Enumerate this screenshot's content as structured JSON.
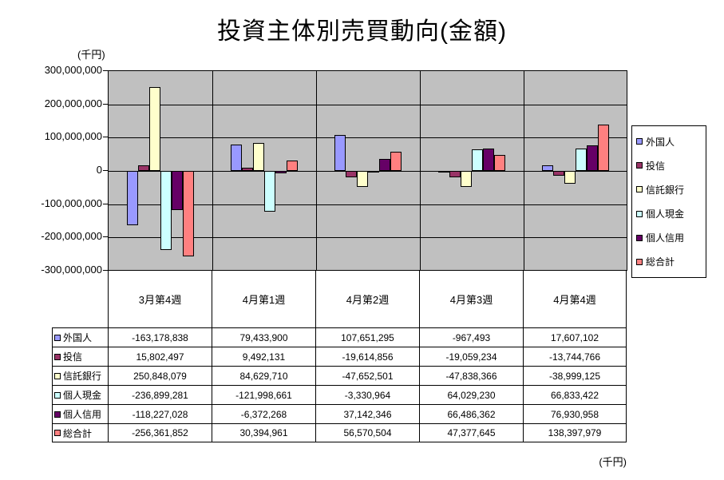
{
  "page": {
    "unit_label_top": "(千円)",
    "unit_label_bottom": "(千円)"
  },
  "chart_data": {
    "type": "bar",
    "title": "投資主体別売買動向(金額)",
    "ylabel": "(千円)",
    "categories": [
      "3月第4週",
      "4月第1週",
      "4月第2週",
      "4月第3週",
      "4月第4週"
    ],
    "series": [
      {
        "name": "外国人",
        "color": "#9999FF",
        "values": [
          -163178838,
          79433900,
          107651295,
          -967493,
          17607102
        ]
      },
      {
        "name": "投信",
        "color": "#993366",
        "values": [
          15802497,
          9492131,
          -19614856,
          -19059234,
          -13744766
        ]
      },
      {
        "name": "信託銀行",
        "color": "#FFFFCC",
        "values": [
          250848079,
          84629710,
          -47652501,
          -47838366,
          -38999125
        ]
      },
      {
        "name": "個人現金",
        "color": "#CCFFFF",
        "values": [
          -236899281,
          -121998661,
          -3330964,
          64029230,
          66833422
        ]
      },
      {
        "name": "個人信用",
        "color": "#660066",
        "values": [
          -118227028,
          -6372268,
          37142346,
          66486362,
          76930958
        ]
      },
      {
        "name": "総合計",
        "color": "#FF8080",
        "values": [
          -256361852,
          30394961,
          56570504,
          47377645,
          138397979
        ]
      }
    ],
    "ylim": [
      -300000000,
      300000000
    ],
    "y_tick_step": 100000000,
    "y_tick_labels": [
      "300,000,000",
      "200,000,000",
      "100,000,000",
      "0",
      "-100,000,000",
      "-200,000,000",
      "-300,000,000"
    ],
    "grid": true,
    "legend_position": "right",
    "plot_background": "#C0C0C0",
    "data_table_shown": true
  }
}
